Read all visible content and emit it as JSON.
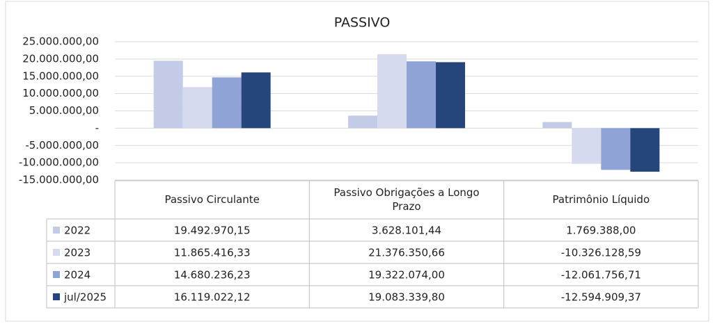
{
  "chart_data": {
    "type": "bar",
    "title": "PASSIVO",
    "categories": [
      "Passivo Circulante",
      "Passivo Obrigações a Longo Prazo",
      "Patrimônio Líquido"
    ],
    "series": [
      {
        "name": "2022",
        "color": "#c3cbe7",
        "values": [
          19492970.15,
          3628101.44,
          1769388.0
        ],
        "value_labels": [
          "19.492.970,15",
          "3.628.101,44",
          "1.769.388,00"
        ]
      },
      {
        "name": "2023",
        "color": "#d5daee",
        "values": [
          11865416.33,
          21376350.66,
          -10326128.59
        ],
        "value_labels": [
          "11.865.416,33",
          "21.376.350,66",
          "-10.326.128,59"
        ]
      },
      {
        "name": "2024",
        "color": "#8fa3d6",
        "values": [
          14680236.23,
          19322074.0,
          -12061756.71
        ],
        "value_labels": [
          "14.680.236,23",
          "19.322.074,00",
          "-12.061.756,71"
        ]
      },
      {
        "name": "jul/2025",
        "color": "#26457a",
        "values": [
          16119022.12,
          19083339.8,
          -12594909.37
        ],
        "value_labels": [
          "16.119.022,12",
          "19.083.339,80",
          "-12.594.909,37"
        ]
      }
    ],
    "ylim": [
      -15000000,
      25000000
    ],
    "yticks": [
      {
        "value": -15000000,
        "label": "-15.000.000,00"
      },
      {
        "value": -10000000,
        "label": "-10.000.000,00"
      },
      {
        "value": -5000000,
        "label": "-5.000.000,00"
      },
      {
        "value": 0,
        "label": "-"
      },
      {
        "value": 5000000,
        "label": "5.000.000,00"
      },
      {
        "value": 10000000,
        "label": "10.000.000,00"
      },
      {
        "value": 15000000,
        "label": "15.000.000,00"
      },
      {
        "value": 20000000,
        "label": "20.000.000,00"
      },
      {
        "value": 25000000,
        "label": "25.000.000,00"
      }
    ],
    "grid": true
  }
}
